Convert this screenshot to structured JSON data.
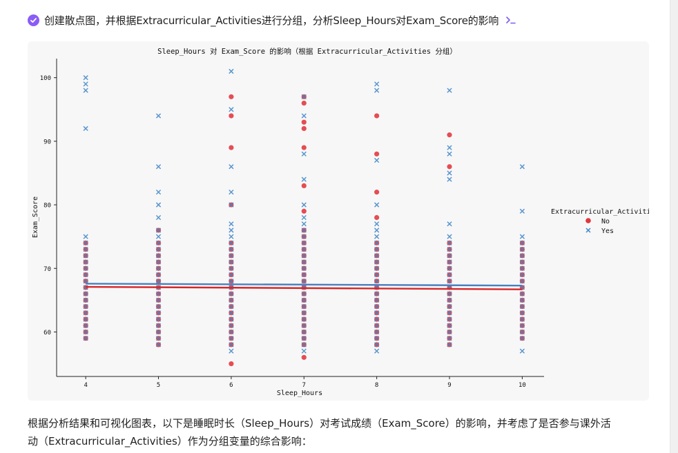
{
  "prompt": {
    "text": "创建散点图，并根据Extracurricular_Activities进行分组，分析Sleep_Hours对Exam_Score的影响",
    "check_icon": "check-circle-icon",
    "terminal_icon": "terminal-icon",
    "accent_color": "#8b5cf6"
  },
  "chart_data": {
    "type": "scatter",
    "title": "Sleep_Hours 对 Exam_Score 的影响（根据 Extracurricular_Activities 分组）",
    "xlabel": "Sleep_Hours",
    "ylabel": "Exam_Score",
    "xlim": [
      3.6,
      10.3
    ],
    "ylim": [
      53,
      103
    ],
    "x_ticks": [
      4,
      5,
      6,
      7,
      8,
      9,
      10
    ],
    "y_ticks": [
      60,
      70,
      80,
      90,
      100
    ],
    "grid": false,
    "legend": {
      "title": "Extracurricular_Activities",
      "placement": "right"
    },
    "dense_band": [
      58,
      75
    ],
    "series": [
      {
        "name": "No",
        "marker": "circle",
        "color": "#e2353b",
        "points": [
          [
            4,
            59
          ],
          [
            4,
            60
          ],
          [
            4,
            61
          ],
          [
            4,
            62
          ],
          [
            4,
            63
          ],
          [
            4,
            64
          ],
          [
            4,
            65
          ],
          [
            4,
            66
          ],
          [
            4,
            67
          ],
          [
            4,
            68
          ],
          [
            4,
            69
          ],
          [
            4,
            70
          ],
          [
            4,
            71
          ],
          [
            4,
            72
          ],
          [
            4,
            73
          ],
          [
            4,
            74
          ],
          [
            5,
            58
          ],
          [
            5,
            59
          ],
          [
            5,
            60
          ],
          [
            5,
            61
          ],
          [
            5,
            62
          ],
          [
            5,
            63
          ],
          [
            5,
            64
          ],
          [
            5,
            65
          ],
          [
            5,
            66
          ],
          [
            5,
            67
          ],
          [
            5,
            68
          ],
          [
            5,
            69
          ],
          [
            5,
            70
          ],
          [
            5,
            71
          ],
          [
            5,
            72
          ],
          [
            5,
            73
          ],
          [
            5,
            74
          ],
          [
            5,
            76
          ],
          [
            6,
            55
          ],
          [
            6,
            58
          ],
          [
            6,
            59
          ],
          [
            6,
            60
          ],
          [
            6,
            61
          ],
          [
            6,
            62
          ],
          [
            6,
            63
          ],
          [
            6,
            64
          ],
          [
            6,
            65
          ],
          [
            6,
            66
          ],
          [
            6,
            67
          ],
          [
            6,
            68
          ],
          [
            6,
            69
          ],
          [
            6,
            70
          ],
          [
            6,
            71
          ],
          [
            6,
            72
          ],
          [
            6,
            73
          ],
          [
            6,
            74
          ],
          [
            6,
            80
          ],
          [
            6,
            89
          ],
          [
            6,
            94
          ],
          [
            6,
            97
          ],
          [
            7,
            56
          ],
          [
            7,
            58
          ],
          [
            7,
            59
          ],
          [
            7,
            60
          ],
          [
            7,
            61
          ],
          [
            7,
            62
          ],
          [
            7,
            63
          ],
          [
            7,
            64
          ],
          [
            7,
            65
          ],
          [
            7,
            66
          ],
          [
            7,
            67
          ],
          [
            7,
            68
          ],
          [
            7,
            69
          ],
          [
            7,
            70
          ],
          [
            7,
            71
          ],
          [
            7,
            72
          ],
          [
            7,
            73
          ],
          [
            7,
            74
          ],
          [
            7,
            75
          ],
          [
            7,
            76
          ],
          [
            7,
            79
          ],
          [
            7,
            83
          ],
          [
            7,
            89
          ],
          [
            7,
            92
          ],
          [
            7,
            93
          ],
          [
            7,
            96
          ],
          [
            7,
            97
          ],
          [
            8,
            58
          ],
          [
            8,
            59
          ],
          [
            8,
            60
          ],
          [
            8,
            61
          ],
          [
            8,
            62
          ],
          [
            8,
            63
          ],
          [
            8,
            64
          ],
          [
            8,
            65
          ],
          [
            8,
            66
          ],
          [
            8,
            67
          ],
          [
            8,
            68
          ],
          [
            8,
            69
          ],
          [
            8,
            70
          ],
          [
            8,
            71
          ],
          [
            8,
            72
          ],
          [
            8,
            73
          ],
          [
            8,
            74
          ],
          [
            8,
            78
          ],
          [
            8,
            82
          ],
          [
            8,
            88
          ],
          [
            8,
            94
          ],
          [
            9,
            58
          ],
          [
            9,
            59
          ],
          [
            9,
            60
          ],
          [
            9,
            61
          ],
          [
            9,
            62
          ],
          [
            9,
            63
          ],
          [
            9,
            64
          ],
          [
            9,
            65
          ],
          [
            9,
            66
          ],
          [
            9,
            67
          ],
          [
            9,
            68
          ],
          [
            9,
            69
          ],
          [
            9,
            70
          ],
          [
            9,
            71
          ],
          [
            9,
            72
          ],
          [
            9,
            73
          ],
          [
            9,
            74
          ],
          [
            9,
            86
          ],
          [
            9,
            91
          ],
          [
            10,
            59
          ],
          [
            10,
            60
          ],
          [
            10,
            61
          ],
          [
            10,
            62
          ],
          [
            10,
            63
          ],
          [
            10,
            64
          ],
          [
            10,
            65
          ],
          [
            10,
            66
          ],
          [
            10,
            67
          ],
          [
            10,
            68
          ],
          [
            10,
            69
          ],
          [
            10,
            70
          ],
          [
            10,
            71
          ],
          [
            10,
            72
          ],
          [
            10,
            73
          ],
          [
            10,
            74
          ]
        ]
      },
      {
        "name": "Yes",
        "marker": "x",
        "color": "#3d85c6",
        "points": [
          [
            4,
            59
          ],
          [
            4,
            60
          ],
          [
            4,
            61
          ],
          [
            4,
            62
          ],
          [
            4,
            63
          ],
          [
            4,
            64
          ],
          [
            4,
            65
          ],
          [
            4,
            66
          ],
          [
            4,
            67
          ],
          [
            4,
            68
          ],
          [
            4,
            69
          ],
          [
            4,
            70
          ],
          [
            4,
            71
          ],
          [
            4,
            72
          ],
          [
            4,
            73
          ],
          [
            4,
            74
          ],
          [
            4,
            75
          ],
          [
            4,
            92
          ],
          [
            4,
            98
          ],
          [
            4,
            99
          ],
          [
            4,
            100
          ],
          [
            5,
            58
          ],
          [
            5,
            59
          ],
          [
            5,
            60
          ],
          [
            5,
            61
          ],
          [
            5,
            62
          ],
          [
            5,
            63
          ],
          [
            5,
            64
          ],
          [
            5,
            65
          ],
          [
            5,
            66
          ],
          [
            5,
            67
          ],
          [
            5,
            68
          ],
          [
            5,
            69
          ],
          [
            5,
            70
          ],
          [
            5,
            71
          ],
          [
            5,
            72
          ],
          [
            5,
            73
          ],
          [
            5,
            74
          ],
          [
            5,
            75
          ],
          [
            5,
            76
          ],
          [
            5,
            78
          ],
          [
            5,
            80
          ],
          [
            5,
            82
          ],
          [
            5,
            86
          ],
          [
            5,
            94
          ],
          [
            6,
            57
          ],
          [
            6,
            58
          ],
          [
            6,
            59
          ],
          [
            6,
            60
          ],
          [
            6,
            61
          ],
          [
            6,
            62
          ],
          [
            6,
            63
          ],
          [
            6,
            64
          ],
          [
            6,
            65
          ],
          [
            6,
            66
          ],
          [
            6,
            67
          ],
          [
            6,
            68
          ],
          [
            6,
            69
          ],
          [
            6,
            70
          ],
          [
            6,
            71
          ],
          [
            6,
            72
          ],
          [
            6,
            73
          ],
          [
            6,
            74
          ],
          [
            6,
            75
          ],
          [
            6,
            76
          ],
          [
            6,
            77
          ],
          [
            6,
            80
          ],
          [
            6,
            82
          ],
          [
            6,
            86
          ],
          [
            6,
            95
          ],
          [
            6,
            101
          ],
          [
            7,
            57
          ],
          [
            7,
            58
          ],
          [
            7,
            59
          ],
          [
            7,
            60
          ],
          [
            7,
            61
          ],
          [
            7,
            62
          ],
          [
            7,
            63
          ],
          [
            7,
            64
          ],
          [
            7,
            65
          ],
          [
            7,
            66
          ],
          [
            7,
            67
          ],
          [
            7,
            68
          ],
          [
            7,
            69
          ],
          [
            7,
            70
          ],
          [
            7,
            71
          ],
          [
            7,
            72
          ],
          [
            7,
            73
          ],
          [
            7,
            74
          ],
          [
            7,
            75
          ],
          [
            7,
            76
          ],
          [
            7,
            77
          ],
          [
            7,
            78
          ],
          [
            7,
            80
          ],
          [
            7,
            84
          ],
          [
            7,
            88
          ],
          [
            7,
            94
          ],
          [
            7,
            97
          ],
          [
            8,
            57
          ],
          [
            8,
            58
          ],
          [
            8,
            59
          ],
          [
            8,
            60
          ],
          [
            8,
            61
          ],
          [
            8,
            62
          ],
          [
            8,
            63
          ],
          [
            8,
            64
          ],
          [
            8,
            65
          ],
          [
            8,
            66
          ],
          [
            8,
            67
          ],
          [
            8,
            68
          ],
          [
            8,
            69
          ],
          [
            8,
            70
          ],
          [
            8,
            71
          ],
          [
            8,
            72
          ],
          [
            8,
            73
          ],
          [
            8,
            74
          ],
          [
            8,
            75
          ],
          [
            8,
            76
          ],
          [
            8,
            77
          ],
          [
            8,
            80
          ],
          [
            8,
            87
          ],
          [
            8,
            98
          ],
          [
            8,
            99
          ],
          [
            9,
            58
          ],
          [
            9,
            59
          ],
          [
            9,
            60
          ],
          [
            9,
            61
          ],
          [
            9,
            62
          ],
          [
            9,
            63
          ],
          [
            9,
            64
          ],
          [
            9,
            65
          ],
          [
            9,
            66
          ],
          [
            9,
            67
          ],
          [
            9,
            68
          ],
          [
            9,
            69
          ],
          [
            9,
            70
          ],
          [
            9,
            71
          ],
          [
            9,
            72
          ],
          [
            9,
            73
          ],
          [
            9,
            74
          ],
          [
            9,
            75
          ],
          [
            9,
            77
          ],
          [
            9,
            84
          ],
          [
            9,
            85
          ],
          [
            9,
            88
          ],
          [
            9,
            89
          ],
          [
            9,
            98
          ],
          [
            10,
            57
          ],
          [
            10,
            59
          ],
          [
            10,
            60
          ],
          [
            10,
            61
          ],
          [
            10,
            62
          ],
          [
            10,
            63
          ],
          [
            10,
            64
          ],
          [
            10,
            65
          ],
          [
            10,
            66
          ],
          [
            10,
            67
          ],
          [
            10,
            68
          ],
          [
            10,
            69
          ],
          [
            10,
            70
          ],
          [
            10,
            71
          ],
          [
            10,
            72
          ],
          [
            10,
            73
          ],
          [
            10,
            74
          ],
          [
            10,
            75
          ],
          [
            10,
            79
          ],
          [
            10,
            86
          ]
        ]
      }
    ],
    "trend_lines": [
      {
        "name": "No",
        "color": "#d62728",
        "x": [
          4,
          10
        ],
        "y": [
          67.1,
          66.7
        ]
      },
      {
        "name": "Yes",
        "color": "#4a7fbf",
        "x": [
          4,
          10
        ],
        "y": [
          67.6,
          67.3
        ]
      }
    ]
  },
  "answer": {
    "line1": "根据分析结果和可视化图表，以下是睡眠时长（Sleep_Hours）对考试成绩（Exam_Score）的影响，并考虑了是否参与课外活",
    "line2": "动（Extracurricular_Activities）作为分组变量的综合影响："
  }
}
